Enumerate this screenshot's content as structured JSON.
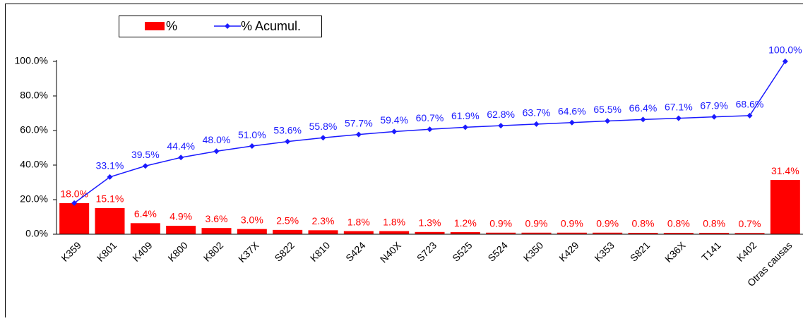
{
  "chart_data": {
    "type": "pareto",
    "categories": [
      "K359",
      "K801",
      "K409",
      "K800",
      "K802",
      "K37X",
      "S822",
      "K810",
      "S424",
      "N40X",
      "S723",
      "S525",
      "S524",
      "K350",
      "K429",
      "K353",
      "S821",
      "K36X",
      "T141",
      "K402",
      "Otras causas"
    ],
    "series": [
      {
        "name": "%",
        "color": "#ff0000",
        "kind": "bar",
        "values": [
          18.0,
          15.1,
          6.4,
          4.9,
          3.6,
          3.0,
          2.5,
          2.3,
          1.8,
          1.8,
          1.3,
          1.2,
          0.9,
          0.9,
          0.9,
          0.9,
          0.8,
          0.8,
          0.8,
          0.7,
          31.4
        ],
        "value_labels": [
          "18.0%",
          "15.1%",
          "6.4%",
          "4.9%",
          "3.6%",
          "3.0%",
          "2.5%",
          "2.3%",
          "1.8%",
          "1.8%",
          "1.3%",
          "1.2%",
          "0.9%",
          "0.9%",
          "0.9%",
          "0.9%",
          "0.8%",
          "0.8%",
          "0.8%",
          "0.7%",
          "31.4%"
        ]
      },
      {
        "name": "% Acumul.",
        "color": "#1a1aff",
        "kind": "line",
        "values": [
          18.0,
          33.1,
          39.5,
          44.4,
          48.0,
          51.0,
          53.6,
          55.8,
          57.7,
          59.4,
          60.7,
          61.9,
          62.8,
          63.7,
          64.6,
          65.5,
          66.4,
          67.1,
          67.9,
          68.6,
          100.0
        ],
        "value_labels": [
          null,
          "33.1%",
          "39.5%",
          "44.4%",
          "48.0%",
          "51.0%",
          "53.6%",
          "55.8%",
          "57.7%",
          "59.4%",
          "60.7%",
          "61.9%",
          "62.8%",
          "63.7%",
          "64.6%",
          "65.5%",
          "66.4%",
          "67.1%",
          "67.9%",
          "68.6%",
          "100.0%"
        ]
      }
    ],
    "ylim": [
      0,
      100
    ],
    "yticks": [
      {
        "value": 0,
        "label": "0.0%"
      },
      {
        "value": 20,
        "label": "20.0%"
      },
      {
        "value": 40,
        "label": "40.0%"
      },
      {
        "value": 60,
        "label": "60.0%"
      },
      {
        "value": 80,
        "label": "80.0%"
      },
      {
        "value": 100,
        "label": "100.0%"
      }
    ],
    "grid": false,
    "legend": "top"
  }
}
